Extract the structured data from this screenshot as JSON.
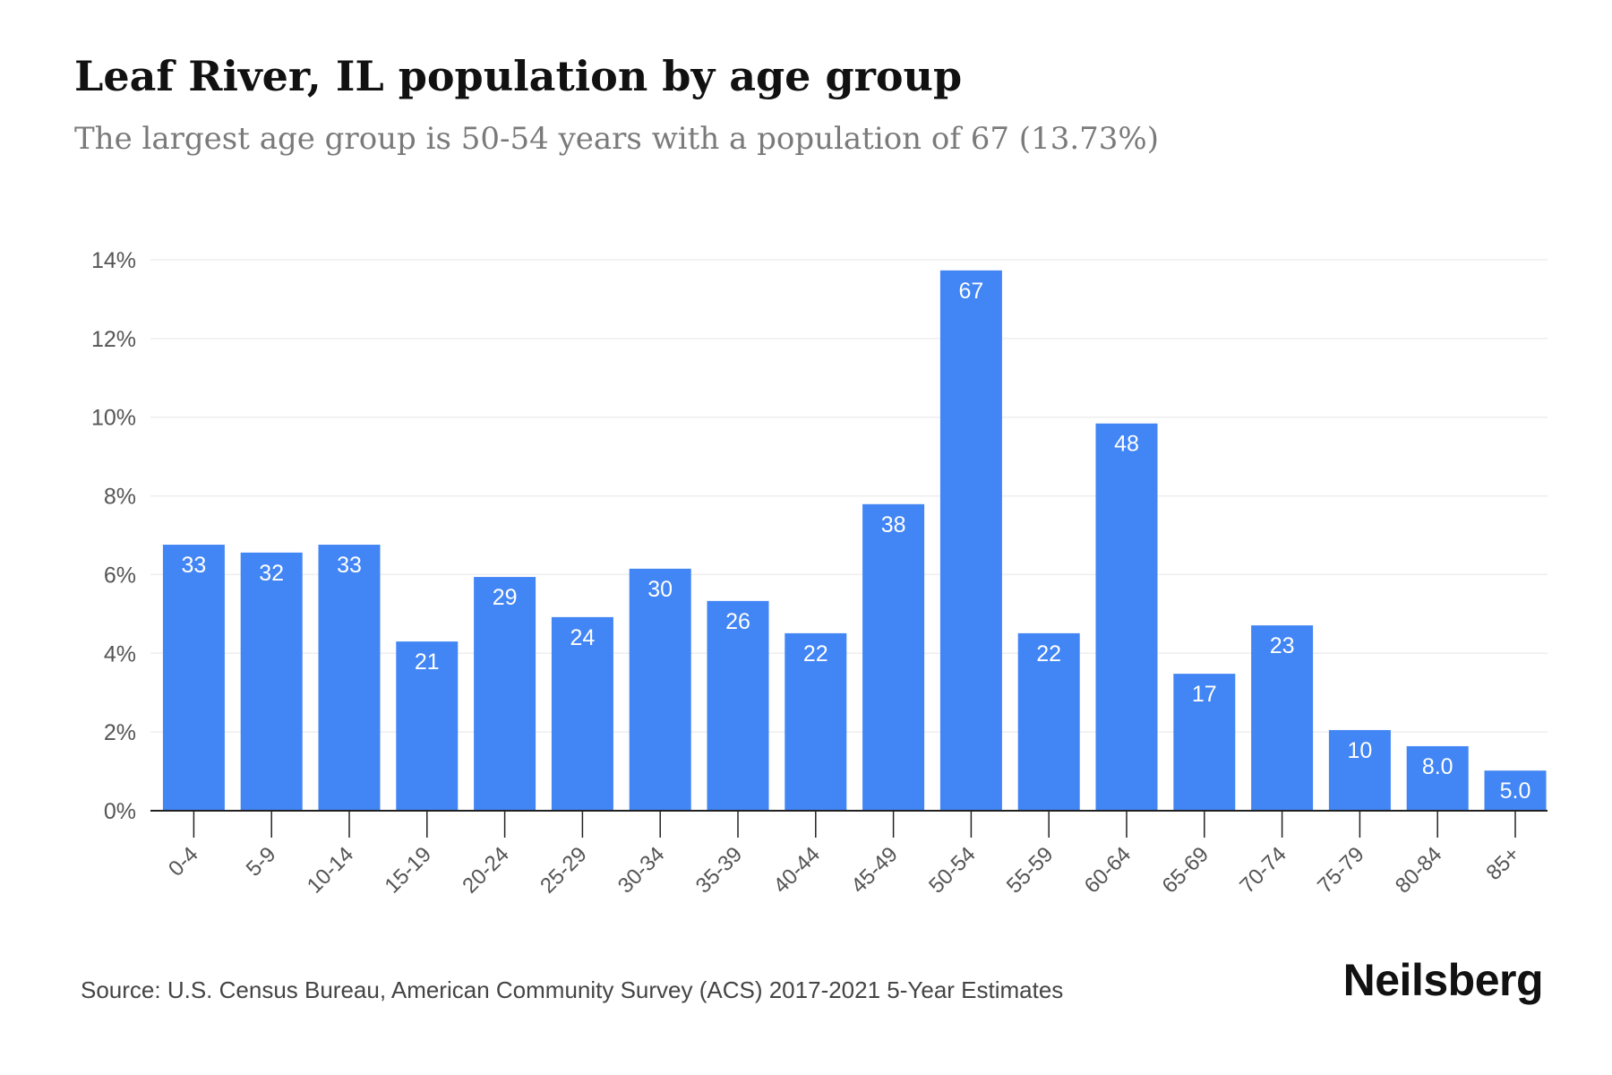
{
  "header": {
    "title": "Leaf River, IL population by age group",
    "subtitle": "The largest age group is 50-54 years with a population of 67 (13.73%)"
  },
  "footer": {
    "source": "Source: U.S. Census Bureau, American Community Survey (ACS) 2017-2021 5-Year Estimates",
    "brand": "Neilsberg"
  },
  "colors": {
    "bar": "#4285f4",
    "bar_label": "#ffffff",
    "grid": "#eeeeee",
    "axis": "#222222",
    "tick_text": "#555555"
  },
  "chart_data": {
    "type": "bar",
    "title": "Leaf River, IL population by age group",
    "subtitle": "The largest age group is 50-54 years with a population of 67 (13.73%)",
    "categories": [
      "0-4",
      "5-9",
      "10-14",
      "15-19",
      "20-24",
      "25-29",
      "30-34",
      "35-39",
      "40-44",
      "45-49",
      "50-54",
      "55-59",
      "60-64",
      "65-69",
      "70-74",
      "75-79",
      "80-84",
      "85+"
    ],
    "values": [
      6.76,
      6.56,
      6.76,
      4.3,
      5.94,
      4.92,
      6.15,
      5.33,
      4.51,
      7.79,
      13.73,
      4.51,
      9.84,
      3.48,
      4.71,
      2.05,
      1.64,
      1.02
    ],
    "data_labels": [
      "33",
      "32",
      "33",
      "21",
      "29",
      "24",
      "30",
      "26",
      "22",
      "38",
      "67",
      "22",
      "48",
      "17",
      "23",
      "10",
      "8.0",
      "5.0"
    ],
    "y_ticks": [
      "0%",
      "2%",
      "4%",
      "6%",
      "8%",
      "10%",
      "12%",
      "14%"
    ],
    "ylim": [
      0,
      14
    ],
    "grid": true,
    "legend": "none"
  }
}
